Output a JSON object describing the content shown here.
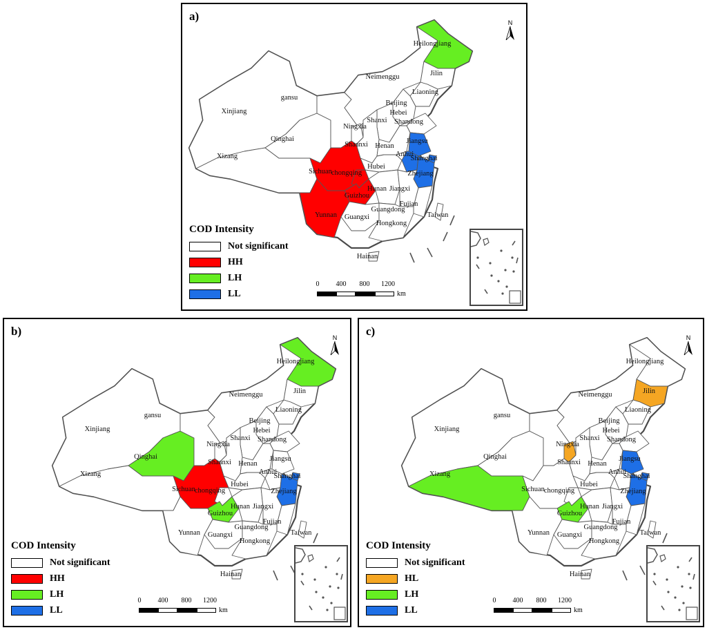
{
  "colors": {
    "not_significant": "#ffffff",
    "HH": "#ff0000",
    "LH": "#66ee22",
    "LL": "#1e6fe6",
    "HL": "#f5a623",
    "border": "#555555"
  },
  "panels": [
    {
      "label": "a)",
      "legend_title": "COD Intensity",
      "legend": [
        {
          "label": "Not significant",
          "color": "#ffffff"
        },
        {
          "label": "HH",
          "color": "#ff0000"
        },
        {
          "label": "LH",
          "color": "#66ee22"
        },
        {
          "label": "LL",
          "color": "#1e6fe6"
        }
      ],
      "classes": {
        "Sichuan": "HH",
        "Chongqing": "HH",
        "Guizhou": "HH",
        "Yunnan": "HH",
        "Heilongjiang": "LH",
        "Jiangsu": "LL",
        "Shanghai": "LL",
        "Zhejiang": "LL",
        "Anhui": "LL"
      },
      "scale_ticks": [
        "0",
        "400",
        "800",
        "1200"
      ],
      "scale_unit": "km",
      "north": "N"
    },
    {
      "label": "b)",
      "legend_title": "COD Intensity",
      "legend": [
        {
          "label": "Not significant",
          "color": "#ffffff"
        },
        {
          "label": "HH",
          "color": "#ff0000"
        },
        {
          "label": "LH",
          "color": "#66ee22"
        },
        {
          "label": "LL",
          "color": "#1e6fe6"
        }
      ],
      "classes": {
        "Sichuan": "HH",
        "Qinghai": "LH",
        "Guizhou": "LH",
        "Heilongjiang": "LH",
        "Zhejiang": "LL",
        "Shanghai": "LL"
      },
      "scale_ticks": [
        "0",
        "400",
        "800",
        "1200"
      ],
      "scale_unit": "km",
      "north": "N"
    },
    {
      "label": "c)",
      "legend_title": "COD Intensity",
      "legend": [
        {
          "label": "Not significant",
          "color": "#ffffff"
        },
        {
          "label": "HL",
          "color": "#f5a623"
        },
        {
          "label": "LH",
          "color": "#66ee22"
        },
        {
          "label": "LL",
          "color": "#1e6fe6"
        }
      ],
      "classes": {
        "Jilin": "HL",
        "Ningxia": "HL",
        "Xizang": "LH",
        "Guizhou": "LH",
        "Jiangsu": "LL",
        "Shanghai": "LL",
        "Zhejiang": "LL"
      },
      "scale_ticks": [
        "0",
        "400",
        "800",
        "1200"
      ],
      "scale_unit": "km",
      "north": "N"
    }
  ],
  "province_labels": {
    "Xinjiang": "Xinjiang",
    "Xizang": "Xizang",
    "Qinghai": "Qinghai",
    "Gansu": "gansu",
    "Neimenggu": "Neimenggu",
    "Heilongjiang": "Heilongjiang",
    "Jilin": "Jilin",
    "Liaoning": "Liaoning",
    "Beijing": "Beijing",
    "Hebei": "Hebei",
    "Shandong": "Shandong",
    "Shanxi": "Shanxi",
    "Ningxia": "Ningxia",
    "Shaanxi": "Shaanxi",
    "Henan": "Henan",
    "Jiangsu": "Jiangsu",
    "Anhui": "Anhui",
    "Shanghai": "Shanghai",
    "Hubei": "Hubei",
    "Sichuan": "Sichuan",
    "Chongqing": "chongqing",
    "Zhejiang": "Zhejiang",
    "Guizhou": "Guizhou",
    "Hunan": "Hunan",
    "Jiangxi": "Jiangxi",
    "Fujian": "Fujian",
    "Yunnan": "Yunnan",
    "Guangxi": "Guangxi",
    "Guangdong": "Guangdong",
    "Taiwan": "Taiwan",
    "Hongkong": "Hongkong",
    "Hainan": "Hainan"
  }
}
